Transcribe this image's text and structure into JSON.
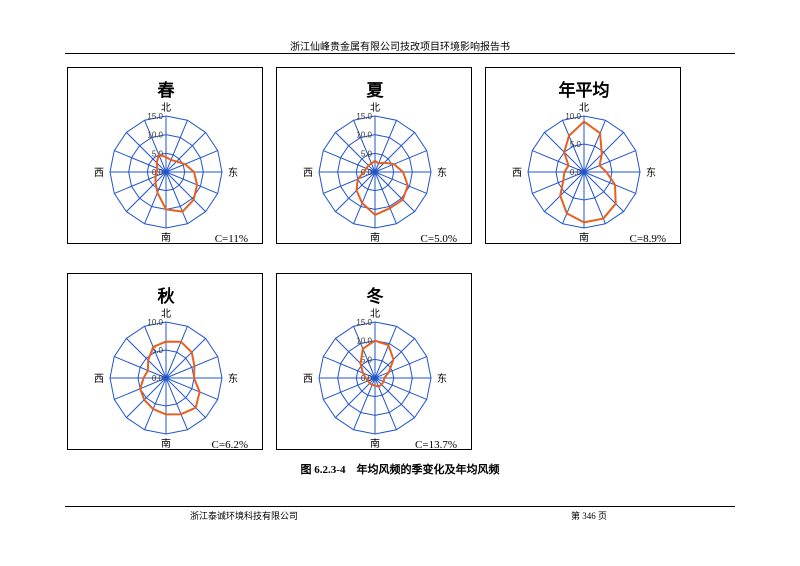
{
  "header": {
    "text": "浙江仙峰贵金属有限公司技改项目环境影响报告书"
  },
  "caption": "图 6.2.3-4　年均风频的季变化及年均风频",
  "footer": {
    "company": "浙江泰诚环境科技有限公司",
    "page": "第 346 页"
  },
  "colors": {
    "grid": "#2255cc",
    "series": "#e8601c"
  },
  "chart_data": [
    {
      "type": "radar",
      "title": "春",
      "calm": "C=11%",
      "rings": [
        5,
        10,
        15
      ],
      "ring_labels": [
        "0.0",
        "5.0",
        "10.0",
        "15.0"
      ],
      "max": 15,
      "directions": [
        "N",
        "NNE",
        "NE",
        "ENE",
        "E",
        "ESE",
        "SE",
        "SSE",
        "S",
        "SSW",
        "SW",
        "WSW",
        "W",
        "WNW",
        "NW",
        "NNW"
      ],
      "direction_labels": {
        "north": "北",
        "east": "东",
        "south": "南",
        "west": "西"
      },
      "values": [
        4.0,
        3.5,
        4.0,
        5.5,
        7.5,
        9.0,
        10.5,
        11.5,
        10.0,
        6.0,
        4.0,
        3.0,
        2.5,
        2.5,
        3.5,
        5.0
      ]
    },
    {
      "type": "radar",
      "title": "夏",
      "calm": "C=5.0%",
      "rings": [
        5,
        10,
        15
      ],
      "ring_labels": [
        "0.0",
        "5.0",
        "10.0",
        "15.0"
      ],
      "max": 15,
      "directions": [
        "N",
        "NNE",
        "NE",
        "ENE",
        "E",
        "ESE",
        "SE",
        "SSE",
        "S",
        "SSW",
        "SW",
        "WSW",
        "W",
        "WNW",
        "NW",
        "NNW"
      ],
      "direction_labels": {
        "north": "北",
        "east": "东",
        "south": "南",
        "west": "西"
      },
      "values": [
        3.0,
        2.5,
        3.5,
        5.5,
        7.5,
        9.5,
        10.5,
        10.5,
        11.5,
        9.0,
        7.0,
        5.0,
        3.0,
        2.5,
        2.5,
        2.5
      ]
    },
    {
      "type": "radar",
      "title": "年平均",
      "calm": "C=8.9%",
      "rings": [
        5,
        10
      ],
      "ring_labels": [
        "0.0",
        "5.0",
        "10.0"
      ],
      "max": 10,
      "directions": [
        "N",
        "NNE",
        "NE",
        "ENE",
        "E",
        "ESE",
        "SE",
        "SSE",
        "S",
        "SSW",
        "SW",
        "WSW",
        "W",
        "WNW",
        "NW",
        "NNW"
      ],
      "direction_labels": {
        "north": "北",
        "east": "东",
        "south": "南",
        "west": "西"
      },
      "values": [
        9.0,
        7.5,
        4.5,
        3.0,
        4.0,
        6.0,
        8.0,
        9.0,
        9.0,
        8.0,
        6.0,
        4.0,
        3.5,
        3.0,
        5.0,
        7.0
      ]
    },
    {
      "type": "radar",
      "title": "秋",
      "calm": "C=6.2%",
      "rings": [
        5,
        10
      ],
      "ring_labels": [
        "0.0",
        "5.0",
        "10.0"
      ],
      "max": 10,
      "directions": [
        "N",
        "NNE",
        "NE",
        "ENE",
        "E",
        "ESE",
        "SE",
        "SSE",
        "S",
        "SSW",
        "SW",
        "WSW",
        "W",
        "WNW",
        "NW",
        "NNW"
      ],
      "direction_labels": {
        "north": "北",
        "east": "东",
        "south": "南",
        "west": "西"
      },
      "values": [
        6.5,
        7.0,
        6.5,
        5.5,
        5.0,
        6.5,
        7.5,
        7.0,
        6.5,
        6.0,
        5.5,
        5.0,
        4.0,
        3.5,
        4.5,
        6.0
      ]
    },
    {
      "type": "radar",
      "title": "冬",
      "calm": "C=13.7%",
      "rings": [
        5,
        10,
        15
      ],
      "ring_labels": [
        "0.0",
        "5.0",
        "10.0",
        "15.0"
      ],
      "max": 15,
      "directions": [
        "N",
        "NNE",
        "NE",
        "ENE",
        "E",
        "ESE",
        "SE",
        "SSE",
        "S",
        "SSW",
        "SW",
        "WSW",
        "W",
        "WNW",
        "NW",
        "NNW"
      ],
      "direction_labels": {
        "north": "北",
        "east": "东",
        "south": "南",
        "west": "西"
      },
      "values": [
        10.0,
        9.5,
        7.0,
        4.0,
        2.5,
        2.5,
        2.5,
        2.5,
        2.0,
        2.0,
        2.0,
        2.0,
        2.5,
        3.5,
        5.5,
        8.5
      ]
    }
  ]
}
